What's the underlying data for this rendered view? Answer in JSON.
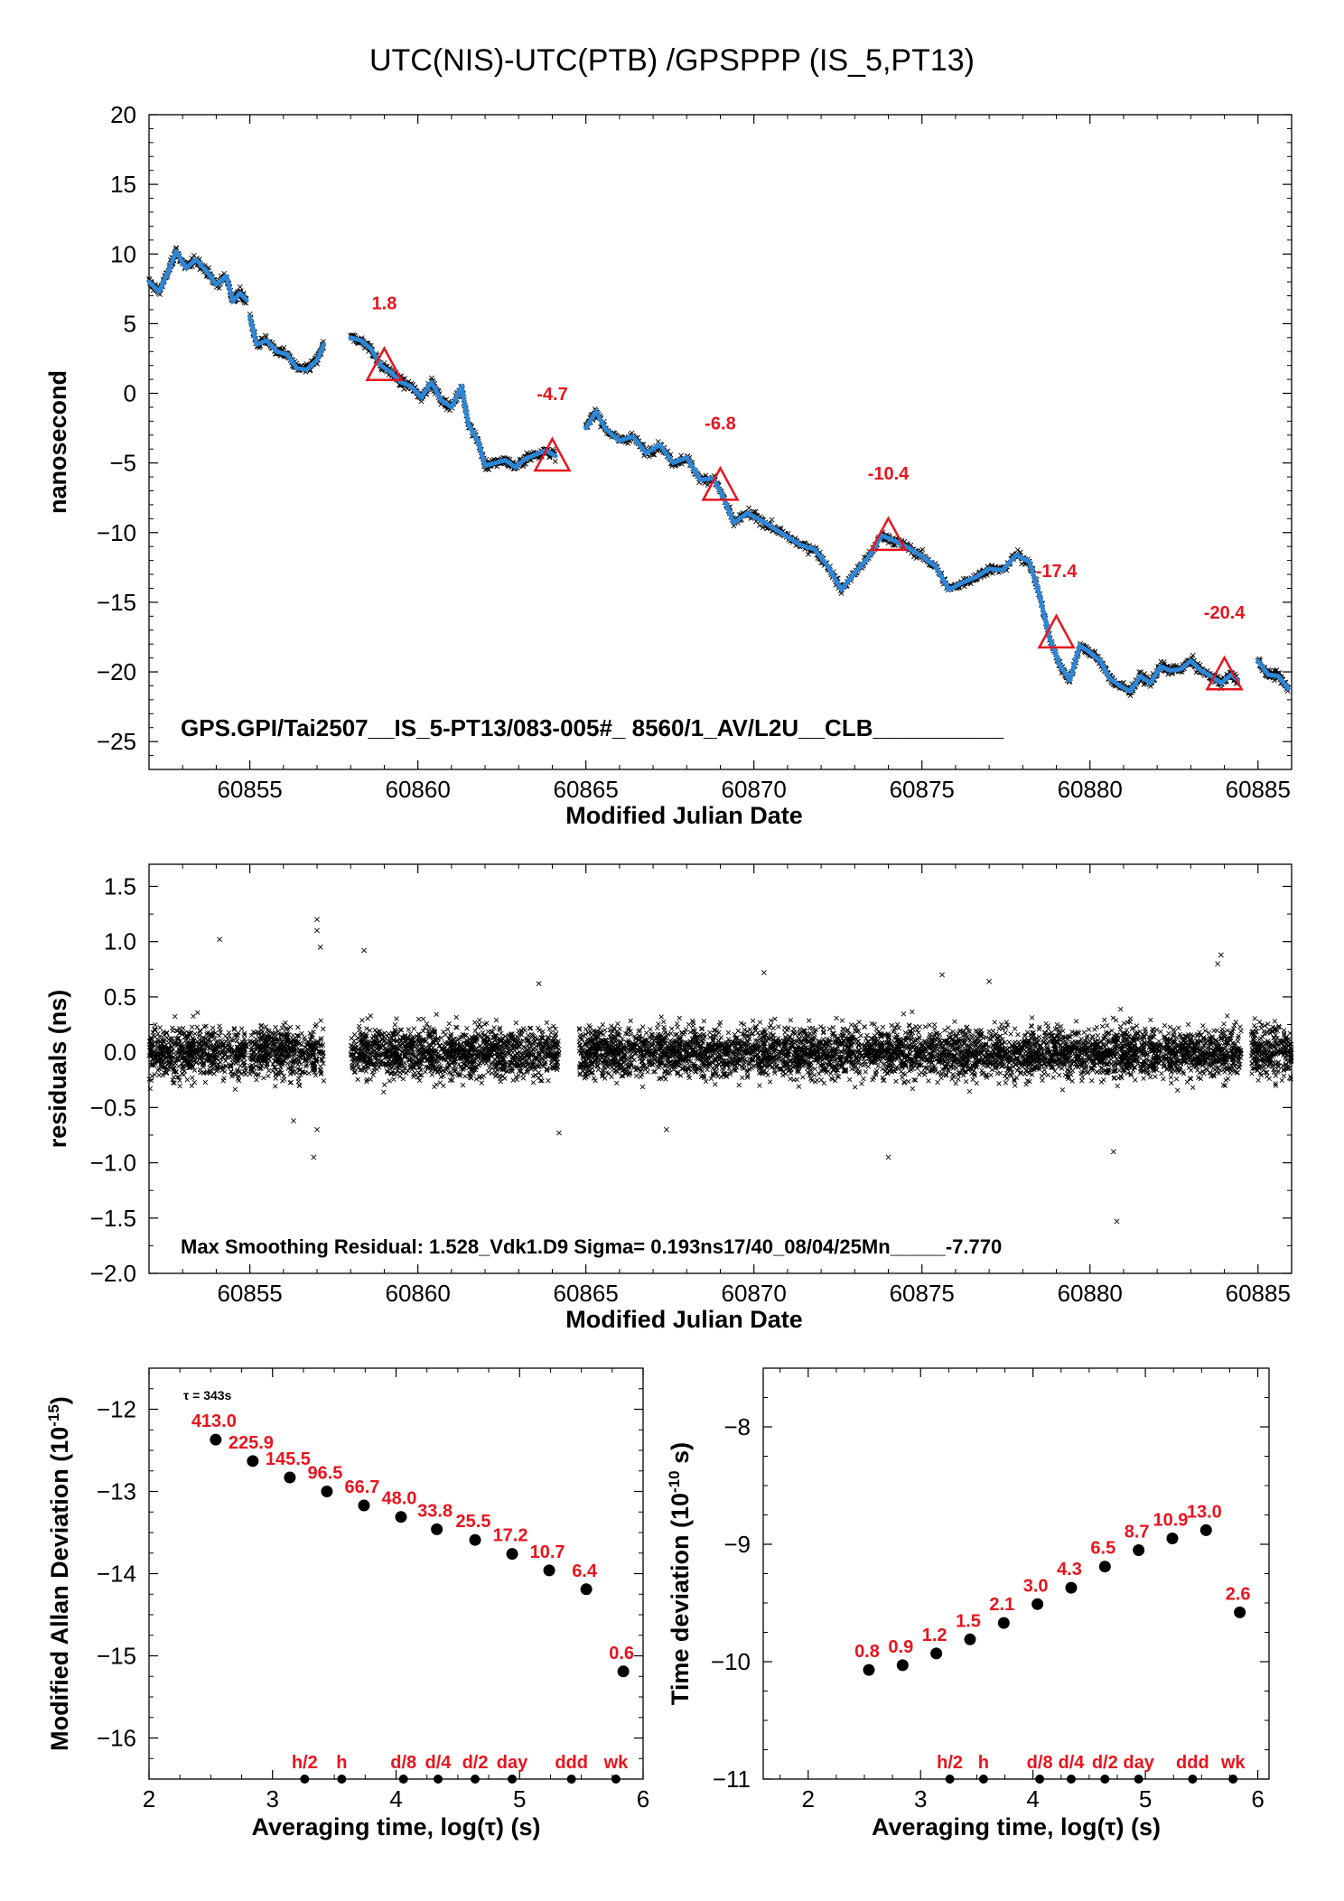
{
  "title": "UTC(NIS)-UTC(PTB)  /GPSPPP  (IS_5,PT13)",
  "colors": {
    "series": "#2e86d6",
    "raw": "#000000",
    "annotation": "#e8141e"
  },
  "chart_data": [
    {
      "type": "scatter",
      "ylabel": "nanosecond",
      "xlabel": "Modified Julian Date",
      "xlim": [
        60852,
        60886
      ],
      "ylim": [
        -27,
        20
      ],
      "xticks": [
        60855,
        60860,
        60865,
        60870,
        60875,
        60880,
        60885
      ],
      "xtick_labels": [
        "60855",
        "60860",
        "60865",
        "60870",
        "60875",
        "60880",
        "60885"
      ],
      "yticks": [
        20,
        15,
        10,
        5,
        0,
        -5,
        -10,
        -15,
        -20,
        -25
      ],
      "ytick_labels": [
        "20",
        "15",
        "10",
        "5",
        "0",
        "−5",
        "−10",
        "−15",
        "−20",
        "−25"
      ],
      "note": "GPS.GPI/Tai2507__IS_5-PT13/083-005#_  8560/1_AV/L2U__CLB__________",
      "smoothed_series": {
        "name": "",
        "segments": [
          {
            "x": [
              60852.0,
              60852.3,
              60852.6,
              60852.8,
              60853.1,
              60853.4,
              60853.7,
              60854.0,
              60854.3,
              60854.5,
              60854.7,
              60854.9
            ],
            "y": [
              8.0,
              7.3,
              8.9,
              10.2,
              9.0,
              9.6,
              8.8,
              7.8,
              8.4,
              6.6,
              7.2,
              6.7
            ]
          },
          {
            "x": [
              60855.0,
              60855.2,
              60855.5,
              60855.8,
              60856.1,
              60856.4,
              60856.7,
              60857.0,
              60857.2
            ],
            "y": [
              5.5,
              3.5,
              3.8,
              3.0,
              2.8,
              1.8,
              1.7,
              2.4,
              3.5
            ]
          },
          {
            "x": [
              60858.0,
              60858.3,
              60858.6,
              60858.9,
              60859.2,
              60859.5,
              60859.8,
              60860.1,
              60860.4,
              60860.7,
              60861.0,
              60861.3,
              60861.5,
              60861.8,
              60862.0,
              60862.3,
              60862.6,
              60862.9,
              60863.2,
              60863.5,
              60863.8,
              60864.1
            ],
            "y": [
              4.0,
              3.8,
              3.2,
              2.0,
              1.5,
              0.8,
              0.5,
              -0.3,
              0.8,
              -0.5,
              -1.0,
              0.5,
              -2.2,
              -3.5,
              -5.2,
              -5.0,
              -4.8,
              -5.3,
              -4.7,
              -4.4,
              -4.1,
              -4.5
            ]
          },
          {
            "x": [
              60865.0,
              60865.3,
              60865.6,
              60866.0,
              60866.4,
              60866.8,
              60867.2,
              60867.6,
              60868.0,
              60868.4,
              60868.8,
              60869.1,
              60869.4,
              60869.8,
              60870.2,
              60870.6,
              60871.0,
              60871.4,
              60871.8,
              60872.2,
              60872.6,
              60873.0,
              60873.4,
              60873.8,
              60874.2,
              60874.6,
              60875.0,
              60875.4,
              60875.8,
              60876.2,
              60876.6,
              60877.0,
              60877.4,
              60877.8,
              60878.2,
              60878.5,
              60878.8,
              60879.1,
              60879.4,
              60879.7,
              60880.0,
              60880.3,
              60880.6,
              60880.9,
              60881.2,
              60881.5,
              60881.8,
              60882.1,
              60882.4,
              60882.7,
              60883.0,
              60883.3,
              60883.6,
              60883.9,
              60884.2,
              60884.4
            ],
            "y": [
              -2.5,
              -1.3,
              -2.6,
              -3.4,
              -3.1,
              -4.3,
              -3.7,
              -5.0,
              -4.6,
              -6.2,
              -6.1,
              -7.5,
              -9.3,
              -8.6,
              -9.1,
              -9.7,
              -10.3,
              -10.9,
              -11.2,
              -12.4,
              -14.1,
              -12.9,
              -11.8,
              -10.2,
              -10.6,
              -11.1,
              -11.7,
              -12.4,
              -14.1,
              -13.6,
              -13.2,
              -12.6,
              -12.7,
              -11.6,
              -12.1,
              -14.5,
              -17.6,
              -19.5,
              -20.6,
              -18.1,
              -18.6,
              -19.2,
              -20.5,
              -21.0,
              -21.4,
              -20.3,
              -20.8,
              -19.6,
              -19.9,
              -19.8,
              -19.2,
              -19.9,
              -20.3,
              -20.8,
              -20.2,
              -20.6
            ]
          },
          {
            "x": [
              60885.0,
              60885.3,
              60885.6,
              60885.9
            ],
            "y": [
              -19.2,
              -20.2,
              -20.3,
              -21.2
            ]
          }
        ]
      },
      "triangles": [
        {
          "x": 60859.0,
          "y": 1.8,
          "label": "1.8"
        },
        {
          "x": 60864.0,
          "y": -4.7,
          "label": "-4.7"
        },
        {
          "x": 60869.0,
          "y": -6.8,
          "label": "-6.8"
        },
        {
          "x": 60874.0,
          "y": -10.4,
          "label": "-10.4"
        },
        {
          "x": 60879.0,
          "y": -17.4,
          "label": "-17.4"
        },
        {
          "x": 60884.0,
          "y": -20.4,
          "label": "-20.4"
        }
      ]
    },
    {
      "type": "scatter",
      "ylabel": "residuals (ns)",
      "xlabel": "Modified Julian Date",
      "xlim": [
        60852,
        60886
      ],
      "ylim": [
        -2.0,
        1.7
      ],
      "xticks": [
        60855,
        60860,
        60865,
        60870,
        60875,
        60880,
        60885
      ],
      "xtick_labels": [
        "60855",
        "60860",
        "60865",
        "60870",
        "60875",
        "60880",
        "60885"
      ],
      "yticks": [
        1.5,
        1.0,
        0.5,
        0.0,
        -0.5,
        -1.0,
        -1.5,
        -2.0
      ],
      "ytick_labels": [
        "1.5",
        "1.0",
        "0.5",
        "0.0",
        "−0.5",
        "−1.0",
        "−1.5",
        "−2.0"
      ],
      "note": "Max Smoothing Residual: 1.528_Vdk1.D9  Sigma= 0.193ns17/40_08/04/25Mn_____-7.770",
      "sigma": 0.193,
      "data_ranges": [
        [
          60852.0,
          60854.9
        ],
        [
          60855.0,
          60857.2
        ],
        [
          60858.0,
          60864.2
        ],
        [
          60864.8,
          60884.5
        ],
        [
          60884.8,
          60886.0
        ]
      ],
      "outliers": [
        {
          "x": 60854.1,
          "y": 1.02
        },
        {
          "x": 60857.0,
          "y": 1.2
        },
        {
          "x": 60857.0,
          "y": 1.1
        },
        {
          "x": 60857.1,
          "y": 0.95
        },
        {
          "x": 60858.4,
          "y": 0.92
        },
        {
          "x": 60856.9,
          "y": -0.95
        },
        {
          "x": 60857.0,
          "y": -0.7
        },
        {
          "x": 60864.2,
          "y": -0.73
        },
        {
          "x": 60874.0,
          "y": -0.95
        },
        {
          "x": 60880.8,
          "y": -1.53
        },
        {
          "x": 60880.7,
          "y": -0.9
        },
        {
          "x": 60883.9,
          "y": 0.88
        },
        {
          "x": 60883.8,
          "y": 0.8
        },
        {
          "x": 60870.3,
          "y": 0.72
        },
        {
          "x": 60875.6,
          "y": 0.7
        },
        {
          "x": 60863.6,
          "y": 0.62
        },
        {
          "x": 60867.4,
          "y": -0.7
        },
        {
          "x": 60856.3,
          "y": -0.62
        },
        {
          "x": 60877.0,
          "y": 0.64
        }
      ]
    },
    {
      "type": "scatter",
      "ylabel": "Modified Allan Deviation (10",
      "ylabel_sup": "-15",
      "ylabel_end": ")",
      "xlabel": "Averaging time, log(τ) (s)",
      "xlim": [
        2,
        6
      ],
      "ylim": [
        -16.5,
        -11.5
      ],
      "xticks": [
        2,
        3,
        4,
        5,
        6
      ],
      "xtick_labels": [
        "2",
        "3",
        "4",
        "5",
        "6"
      ],
      "yticks": [
        -12,
        -13,
        -14,
        -15,
        -16
      ],
      "ytick_labels": [
        "−12",
        "−13",
        "−14",
        "−15",
        "−16"
      ],
      "tau_label": "τ = 343s",
      "points": [
        {
          "x": 2.54,
          "y": -12.37,
          "label": "413.0"
        },
        {
          "x": 2.84,
          "y": -12.63,
          "label": "225.9"
        },
        {
          "x": 3.14,
          "y": -12.83,
          "label": "145.5"
        },
        {
          "x": 3.44,
          "y": -13.0,
          "label": "96.5"
        },
        {
          "x": 3.74,
          "y": -13.17,
          "label": "66.7"
        },
        {
          "x": 4.04,
          "y": -13.31,
          "label": "48.0"
        },
        {
          "x": 4.33,
          "y": -13.46,
          "label": "33.8"
        },
        {
          "x": 4.64,
          "y": -13.59,
          "label": "25.5"
        },
        {
          "x": 4.94,
          "y": -13.76,
          "label": "17.2"
        },
        {
          "x": 5.24,
          "y": -13.96,
          "label": "10.7"
        },
        {
          "x": 5.54,
          "y": -14.19,
          "label": "6.4"
        },
        {
          "x": 5.84,
          "y": -15.19,
          "label": "0.6"
        }
      ],
      "markers": [
        {
          "x": 3.26,
          "label": "h/2"
        },
        {
          "x": 3.56,
          "label": "h"
        },
        {
          "x": 4.06,
          "label": "d/8"
        },
        {
          "x": 4.34,
          "label": "d/4"
        },
        {
          "x": 4.64,
          "label": "d/2"
        },
        {
          "x": 4.94,
          "label": "day"
        },
        {
          "x": 5.42,
          "label": "ddd"
        },
        {
          "x": 5.78,
          "label": "wk"
        }
      ]
    },
    {
      "type": "scatter",
      "ylabel": "Time deviation (10",
      "ylabel_sup": "-10",
      "ylabel_end": " s)",
      "xlabel": "Averaging time, log(τ) (s)",
      "xlim": [
        1.6,
        6.1
      ],
      "ylim": [
        -11,
        -7.5
      ],
      "xticks": [
        2,
        3,
        4,
        5,
        6
      ],
      "xtick_labels": [
        "2",
        "3",
        "4",
        "5",
        "6"
      ],
      "yticks": [
        -8,
        -9,
        -10,
        -11
      ],
      "ytick_labels": [
        "−8",
        "−9",
        "−10",
        "−11"
      ],
      "points": [
        {
          "x": 2.54,
          "y": -10.07,
          "label": "0.8"
        },
        {
          "x": 2.84,
          "y": -10.03,
          "label": "0.9"
        },
        {
          "x": 3.14,
          "y": -9.93,
          "label": "1.2"
        },
        {
          "x": 3.44,
          "y": -9.81,
          "label": "1.5"
        },
        {
          "x": 3.74,
          "y": -9.67,
          "label": "2.1"
        },
        {
          "x": 4.04,
          "y": -9.51,
          "label": "3.0"
        },
        {
          "x": 4.34,
          "y": -9.37,
          "label": "4.3"
        },
        {
          "x": 4.64,
          "y": -9.19,
          "label": "6.5"
        },
        {
          "x": 4.94,
          "y": -9.05,
          "label": "8.7"
        },
        {
          "x": 5.24,
          "y": -8.95,
          "label": "10.9"
        },
        {
          "x": 5.54,
          "y": -8.88,
          "label": "13.0"
        },
        {
          "x": 5.84,
          "y": -9.58,
          "label": "2.6"
        }
      ],
      "markers": [
        {
          "x": 3.26,
          "label": "h/2"
        },
        {
          "x": 3.56,
          "label": "h"
        },
        {
          "x": 4.06,
          "label": "d/8"
        },
        {
          "x": 4.34,
          "label": "d/4"
        },
        {
          "x": 4.64,
          "label": "d/2"
        },
        {
          "x": 4.94,
          "label": "day"
        },
        {
          "x": 5.42,
          "label": "ddd"
        },
        {
          "x": 5.78,
          "label": "wk"
        }
      ]
    }
  ]
}
